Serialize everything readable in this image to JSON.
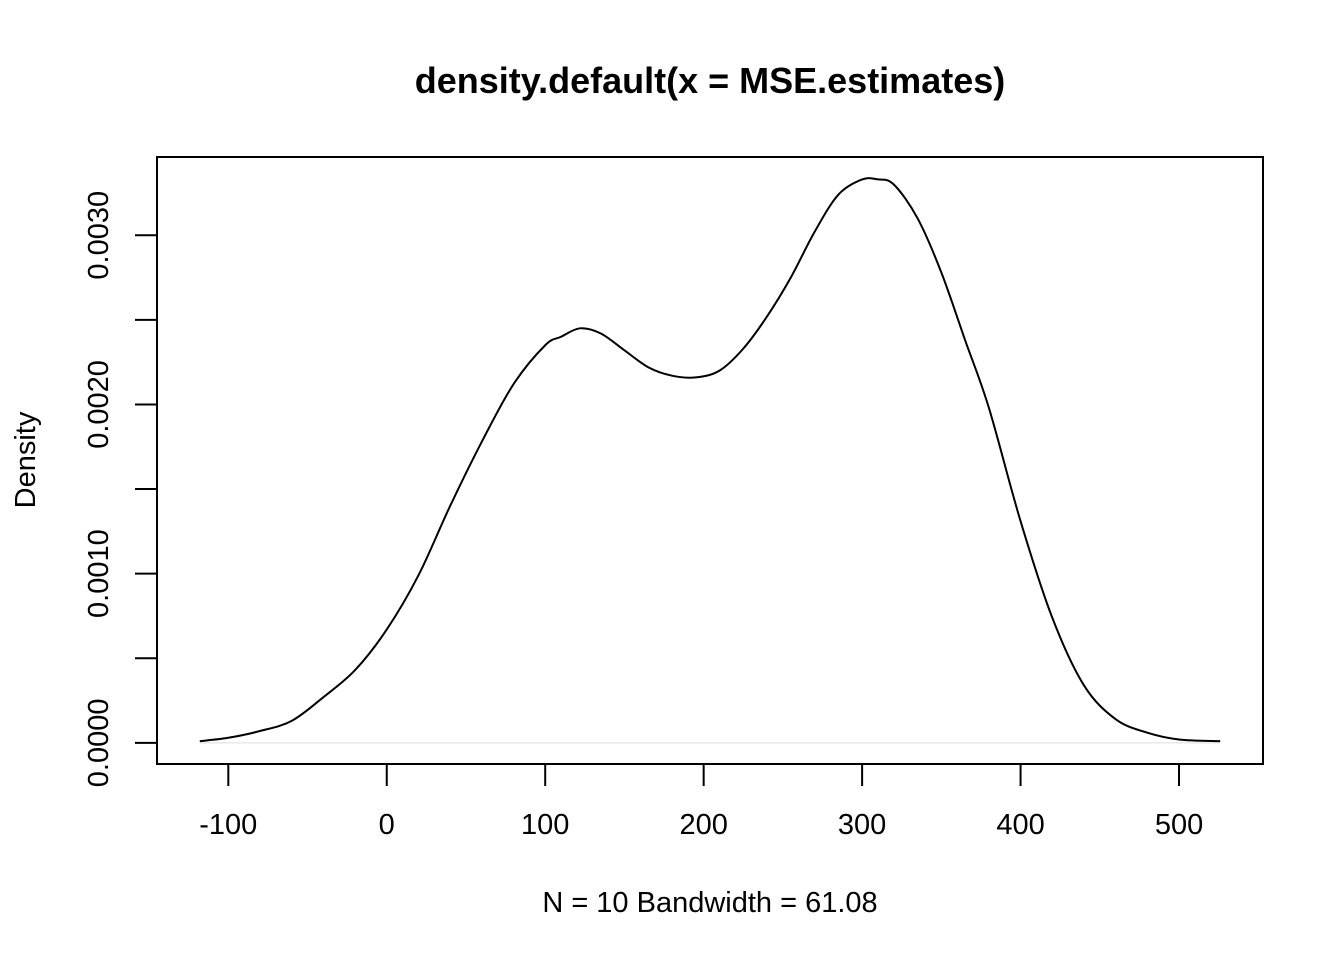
{
  "chart_data": {
    "type": "line",
    "title": "density.default(x = MSE.estimates)",
    "xlabel": "N = 10   Bandwidth = 61.08",
    "ylabel": "Density",
    "xlim": [
      -145,
      553
    ],
    "ylim": [
      -0.000125,
      0.0034625
    ],
    "x_ticks": [
      -100,
      0,
      100,
      200,
      300,
      400,
      500
    ],
    "x_tick_labels": [
      "-100",
      "0",
      "100",
      "200",
      "300",
      "400",
      "500"
    ],
    "y_ticks": [
      0.0,
      0.0005,
      0.001,
      0.0015,
      0.002,
      0.0025,
      0.003
    ],
    "y_tick_labels": [
      "0.0000",
      "",
      "0.0010",
      "",
      "0.0020",
      "",
      "0.0030"
    ],
    "grid": false,
    "zero_line": true,
    "colors": {
      "line": "#000000",
      "frame": "#000000",
      "zero_line": "#dddddd",
      "background": "#ffffff"
    },
    "series": [
      {
        "x": [
          -118,
          -100,
          -80,
          -60,
          -40,
          -20,
          0,
          20,
          40,
          60,
          80,
          100,
          110,
          122,
          135,
          150,
          165,
          180,
          195,
          210,
          225,
          240,
          255,
          270,
          285,
          300,
          310,
          320,
          335,
          350,
          365,
          380,
          400,
          420,
          440,
          460,
          480,
          500,
          526
        ],
        "y": [
          1e-05,
          3e-05,
          7e-05,
          0.00013,
          0.00027,
          0.00043,
          0.00067,
          0.00099,
          0.0014,
          0.00178,
          0.00212,
          0.00235,
          0.0024,
          0.00245,
          0.00242,
          0.00232,
          0.00222,
          0.00217,
          0.00216,
          0.0022,
          0.00233,
          0.00252,
          0.00275,
          0.00302,
          0.00324,
          0.00333,
          0.00333,
          0.0033,
          0.0031,
          0.00278,
          0.00238,
          0.00198,
          0.00131,
          0.00074,
          0.00034,
          0.00014,
          6e-05,
          2e-05,
          1e-05
        ]
      }
    ]
  }
}
